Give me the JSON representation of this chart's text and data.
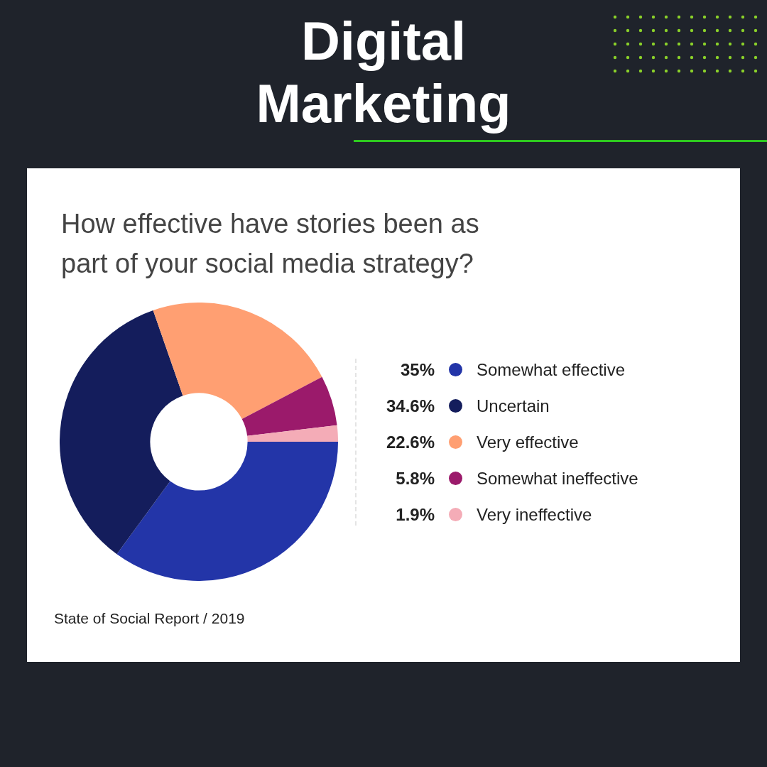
{
  "chart_data": {
    "type": "donut",
    "title": "Digital Marketing",
    "subtitle": "How effective have stories been as part of your social media strategy?",
    "categories": [
      "Somewhat effective",
      "Uncertain",
      "Very effective",
      "Somewhat ineffective",
      "Very ineffective"
    ],
    "values": [
      35,
      34.6,
      22.6,
      5.8,
      1.9
    ],
    "colors": [
      "#2335a8",
      "#141d5c",
      "#ff9f72",
      "#9b1a6b",
      "#f4acb7"
    ],
    "value_labels": [
      "35%",
      "34.6%",
      "22.6%",
      "5.8%",
      "1.9%"
    ],
    "legend": "right",
    "annotations": [
      "State of Social Report / 2019"
    ]
  }
}
